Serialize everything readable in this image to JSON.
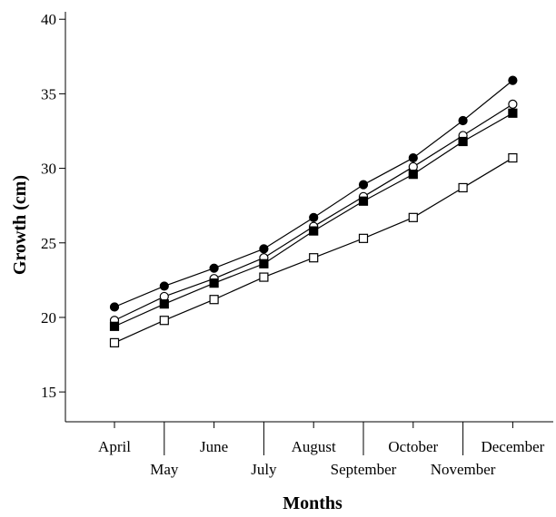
{
  "chart_data": {
    "type": "line",
    "xlabel": "Months",
    "ylabel": "Growth (cm)",
    "categories": [
      "April",
      "May",
      "June",
      "July",
      "August",
      "September",
      "October",
      "November",
      "December"
    ],
    "ylim": [
      13,
      40.5
    ],
    "yticks": [
      15,
      20,
      25,
      30,
      35,
      40
    ],
    "grid": false,
    "series": [
      {
        "marker": "filled-circle",
        "values": [
          20.7,
          22.1,
          23.3,
          24.6,
          26.7,
          28.9,
          30.7,
          33.2,
          35.9
        ]
      },
      {
        "marker": "open-circle",
        "values": [
          19.8,
          21.4,
          22.6,
          24.0,
          26.1,
          28.1,
          30.1,
          32.2,
          34.3
        ]
      },
      {
        "marker": "filled-square",
        "values": [
          19.4,
          20.9,
          22.3,
          23.6,
          25.8,
          27.8,
          29.6,
          31.8,
          33.7
        ]
      },
      {
        "marker": "open-square",
        "values": [
          18.3,
          19.8,
          21.2,
          22.7,
          24.0,
          25.3,
          26.7,
          28.7,
          30.7
        ]
      }
    ]
  }
}
